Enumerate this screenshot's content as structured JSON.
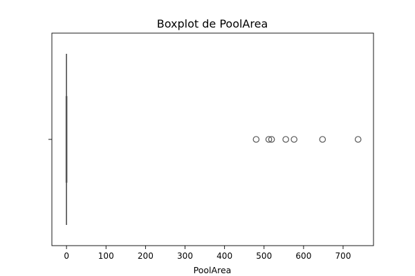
{
  "chart_data": {
    "type": "box",
    "title": "Boxplot de PoolArea",
    "xlabel": "PoolArea",
    "ylabel": "",
    "xlim": [
      -37,
      777
    ],
    "xticks": [
      0,
      100,
      200,
      300,
      400,
      500,
      600,
      700
    ],
    "xtick_labels": [
      "0",
      "100",
      "200",
      "300",
      "400",
      "500",
      "600",
      "700"
    ],
    "grid": false,
    "box": {
      "q1": 0,
      "median": 0,
      "q3": 0,
      "whisker_low": 0,
      "whisker_high": 0,
      "outliers": [
        480,
        512,
        519,
        555,
        576,
        648,
        738
      ]
    },
    "colors": {
      "box": "#555555",
      "axes": "#000000"
    }
  }
}
